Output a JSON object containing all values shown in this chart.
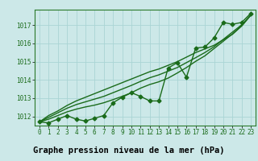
{
  "x": [
    0,
    1,
    2,
    3,
    4,
    5,
    6,
    7,
    8,
    9,
    10,
    11,
    12,
    13,
    14,
    15,
    16,
    17,
    18,
    19,
    20,
    21,
    22,
    23
  ],
  "pressure": [
    1011.7,
    1011.65,
    1011.85,
    1012.05,
    1011.85,
    1011.75,
    1011.9,
    1012.05,
    1012.75,
    1013.05,
    1013.3,
    1013.1,
    1012.85,
    1012.85,
    1014.65,
    1014.95,
    1014.15,
    1015.75,
    1015.8,
    1016.3,
    1017.15,
    1017.05,
    1017.15,
    1017.65
  ],
  "line1": [
    1011.7,
    1012.05,
    1012.3,
    1012.6,
    1012.85,
    1013.05,
    1013.25,
    1013.45,
    1013.65,
    1013.85,
    1014.05,
    1014.25,
    1014.45,
    1014.6,
    1014.8,
    1015.0,
    1015.25,
    1015.5,
    1015.7,
    1015.9,
    1016.2,
    1016.5,
    1016.95,
    1017.55
  ],
  "line2": [
    1011.7,
    1011.95,
    1012.2,
    1012.45,
    1012.65,
    1012.8,
    1012.95,
    1013.1,
    1013.3,
    1013.5,
    1013.7,
    1013.92,
    1014.12,
    1014.28,
    1014.48,
    1014.68,
    1014.95,
    1015.22,
    1015.5,
    1015.82,
    1016.22,
    1016.62,
    1017.02,
    1017.55
  ],
  "line3": [
    1011.7,
    1011.85,
    1012.05,
    1012.25,
    1012.4,
    1012.52,
    1012.62,
    1012.75,
    1012.92,
    1013.1,
    1013.3,
    1013.55,
    1013.75,
    1013.9,
    1014.1,
    1014.38,
    1014.68,
    1015.02,
    1015.32,
    1015.72,
    1016.12,
    1016.52,
    1016.97,
    1017.55
  ],
  "bg_color": "#cce8e8",
  "grid_color": "#aad4d4",
  "line_color": "#1a6b1a",
  "bottom_bar_color": "#2a7a2a",
  "xlabel": "Graphe pression niveau de la mer (hPa)",
  "ylim": [
    1011.5,
    1017.85
  ],
  "yticks": [
    1012,
    1013,
    1014,
    1015,
    1016,
    1017
  ],
  "xticks": [
    0,
    1,
    2,
    3,
    4,
    5,
    6,
    7,
    8,
    9,
    10,
    11,
    12,
    13,
    14,
    15,
    16,
    17,
    18,
    19,
    20,
    21,
    22,
    23
  ],
  "marker": "D",
  "markersize": 2.5,
  "linewidth": 1.0,
  "xlabel_fontsize": 7.5,
  "tick_fontsize": 5.5
}
